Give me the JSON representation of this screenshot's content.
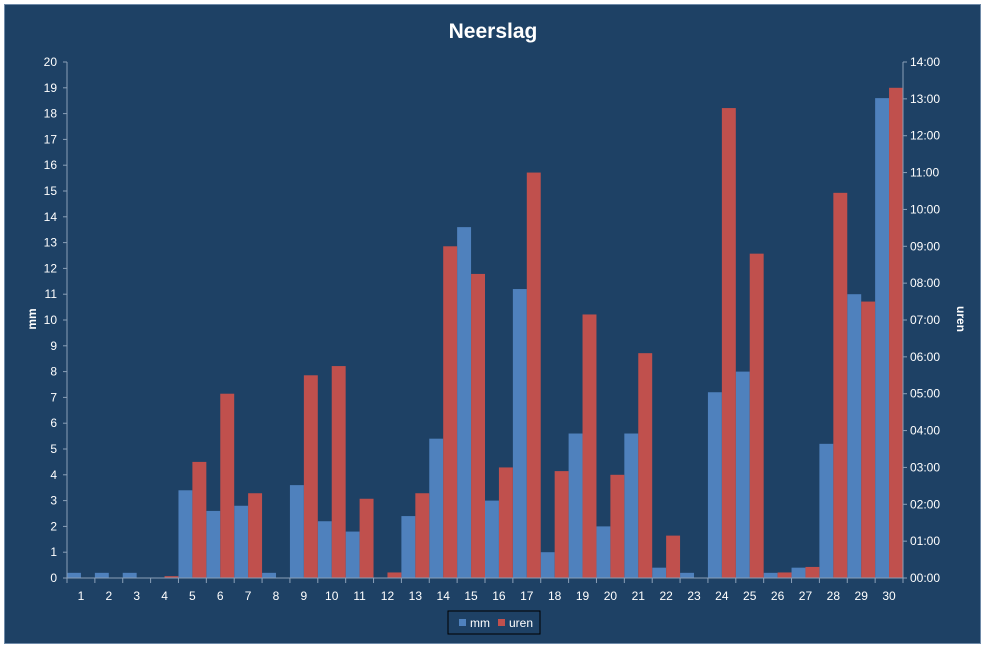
{
  "chart_data": {
    "type": "bar",
    "title": "Neerslag",
    "xlabel": "",
    "ylabel": "mm",
    "y2label": "uren",
    "categories": [
      "1",
      "2",
      "3",
      "4",
      "5",
      "6",
      "7",
      "8",
      "9",
      "10",
      "11",
      "12",
      "13",
      "14",
      "15",
      "16",
      "17",
      "18",
      "19",
      "20",
      "21",
      "22",
      "23",
      "24",
      "25",
      "26",
      "27",
      "28",
      "29",
      "30"
    ],
    "ylim": [
      0,
      20
    ],
    "yticks": [
      "0",
      "1",
      "2",
      "3",
      "4",
      "5",
      "6",
      "7",
      "8",
      "9",
      "10",
      "11",
      "12",
      "13",
      "14",
      "15",
      "16",
      "17",
      "18",
      "19",
      "20"
    ],
    "y2lim_hours": [
      0,
      14
    ],
    "y2ticks": [
      "00:00",
      "01:00",
      "02:00",
      "03:00",
      "04:00",
      "05:00",
      "06:00",
      "07:00",
      "08:00",
      "09:00",
      "10:00",
      "11:00",
      "12:00",
      "13:00",
      "14:00"
    ],
    "legend_position": "bottom",
    "series": [
      {
        "name": "mm",
        "axis": "left",
        "color": "#4f81bd",
        "values": [
          0.2,
          0.2,
          0.2,
          0,
          3.4,
          2.6,
          2.8,
          0.2,
          3.6,
          2.2,
          1.8,
          0,
          2.4,
          5.4,
          13.6,
          3.0,
          11.2,
          1.0,
          5.6,
          2.0,
          5.6,
          0.4,
          0.2,
          7.2,
          8.0,
          0.2,
          0.4,
          5.2,
          11.0,
          18.6
        ]
      },
      {
        "name": "uren",
        "axis": "right",
        "unit": "hours",
        "color": "#c0504d",
        "values": [
          0,
          0,
          0,
          0.05,
          3.15,
          5.0,
          2.3,
          0,
          5.5,
          5.75,
          2.15,
          0.15,
          2.3,
          9.0,
          8.25,
          3.0,
          11.0,
          2.9,
          7.15,
          2.8,
          6.1,
          1.15,
          0,
          12.75,
          8.8,
          0.15,
          0.3,
          10.45,
          7.5,
          13.3
        ]
      }
    ]
  }
}
